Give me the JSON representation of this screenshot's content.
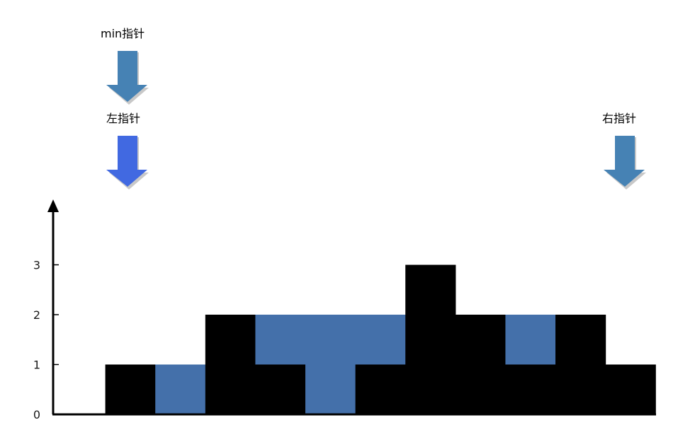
{
  "pointers": {
    "min": {
      "label": "min指针",
      "color": "#4682B4"
    },
    "left": {
      "label": "左指针",
      "color": "#4169E1"
    },
    "right": {
      "label": "右指针",
      "color": "#4682B4"
    }
  },
  "chart_data": {
    "type": "bar",
    "heights": [
      0,
      1,
      0,
      2,
      1,
      0,
      1,
      3,
      2,
      1,
      2,
      1
    ],
    "water": [
      0,
      0,
      1,
      0,
      1,
      2,
      1,
      0,
      0,
      1,
      0,
      0
    ],
    "yticks": [
      "0",
      "1",
      "2",
      "3"
    ],
    "ylim": [
      0,
      3
    ],
    "bar_color": "#000000",
    "water_color": "#4470AA"
  }
}
